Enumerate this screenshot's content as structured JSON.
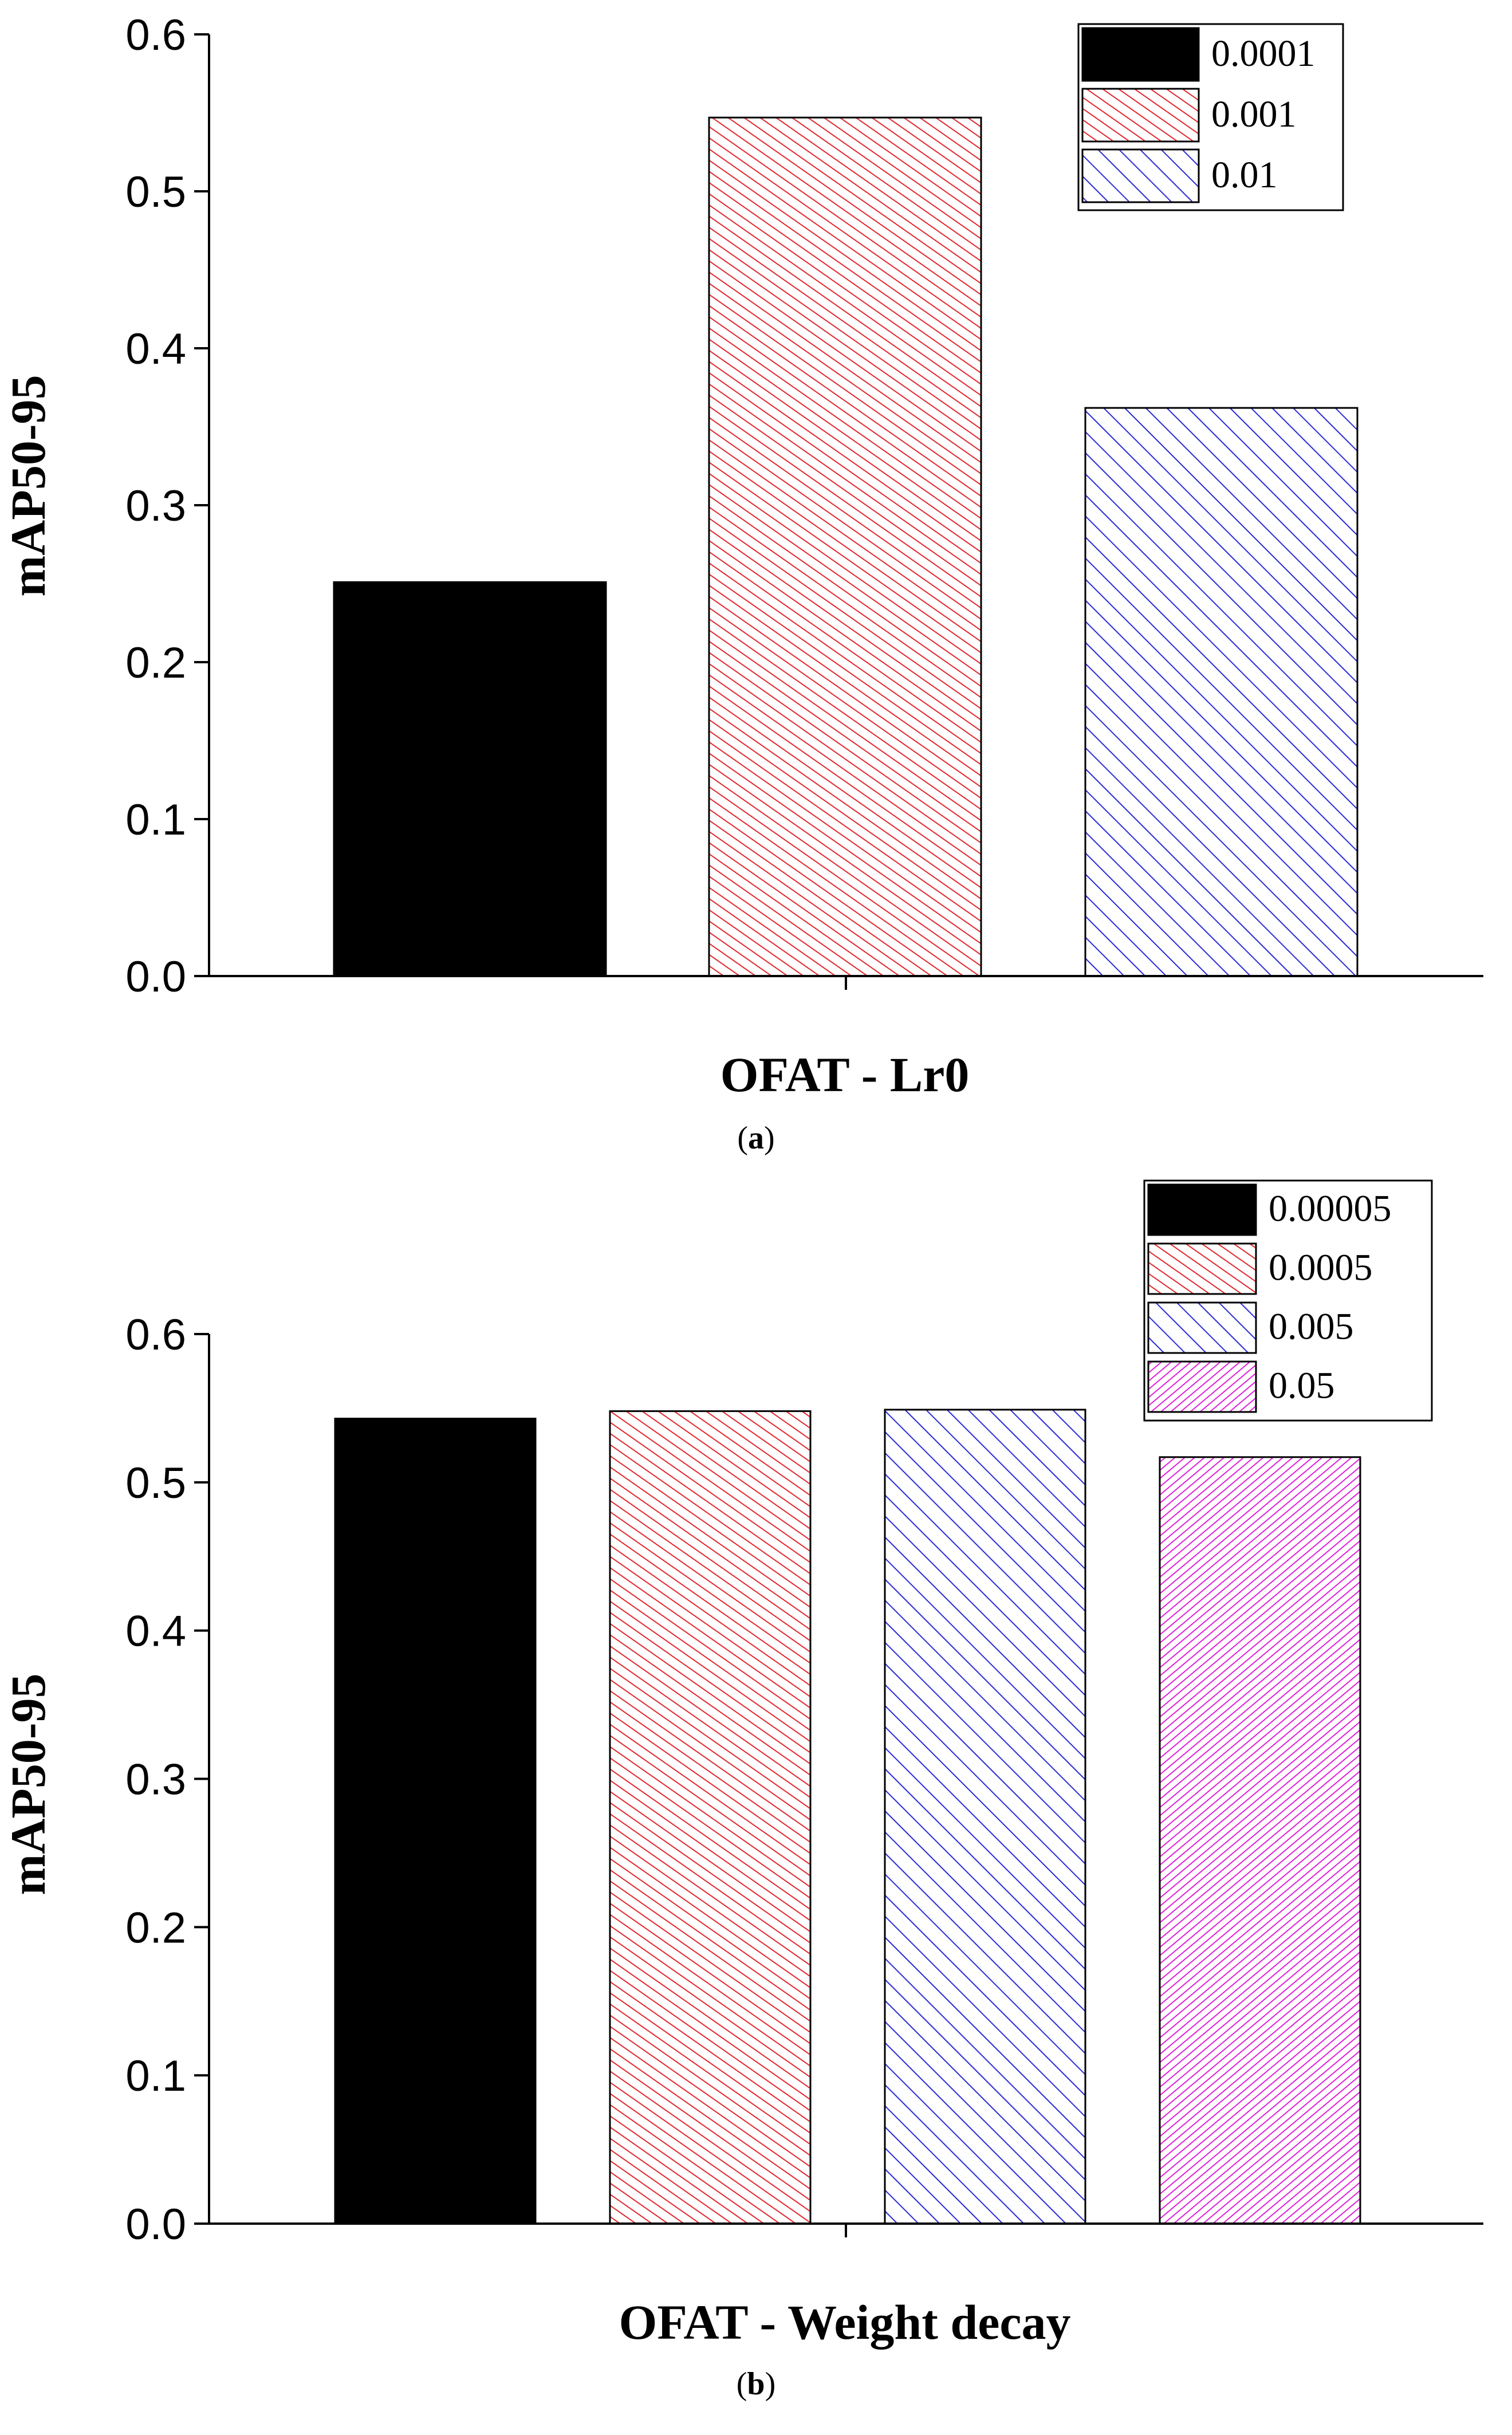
{
  "chart_data": [
    {
      "type": "bar",
      "panel_label": "(a)",
      "xlabel": "OFAT - Lr0",
      "ylabel": "mAP50-95",
      "ylim": [
        0,
        0.6
      ],
      "yticks": [
        "0.0",
        "0.1",
        "0.2",
        "0.3",
        "0.4",
        "0.5",
        "0.6"
      ],
      "legend_position": "top-right",
      "series": [
        {
          "name": "0.0001",
          "value": 0.251,
          "color": "#000000",
          "pattern": "solid"
        },
        {
          "name": "0.001",
          "value": 0.547,
          "color": "#e0282d",
          "pattern": "hatch-steep"
        },
        {
          "name": "0.01",
          "value": 0.362,
          "color": "#2b2bd6",
          "pattern": "hatch"
        }
      ]
    },
    {
      "type": "bar",
      "panel_label": "(b)",
      "xlabel": "OFAT - Weight decay",
      "ylabel": "mAP50-95",
      "ylim": [
        0,
        0.6
      ],
      "yticks": [
        "0.0",
        "0.1",
        "0.2",
        "0.3",
        "0.4",
        "0.5",
        "0.6"
      ],
      "legend_position": "top-right",
      "series": [
        {
          "name": "0.00005",
          "value": 0.543,
          "color": "#000000",
          "pattern": "solid"
        },
        {
          "name": "0.0005",
          "value": 0.548,
          "color": "#e0282d",
          "pattern": "hatch-steep"
        },
        {
          "name": "0.005",
          "value": 0.549,
          "color": "#2b2bd6",
          "pattern": "hatch"
        },
        {
          "name": "0.05",
          "value": 0.517,
          "color": "#e020d8",
          "pattern": "hatch-dense"
        }
      ]
    }
  ]
}
